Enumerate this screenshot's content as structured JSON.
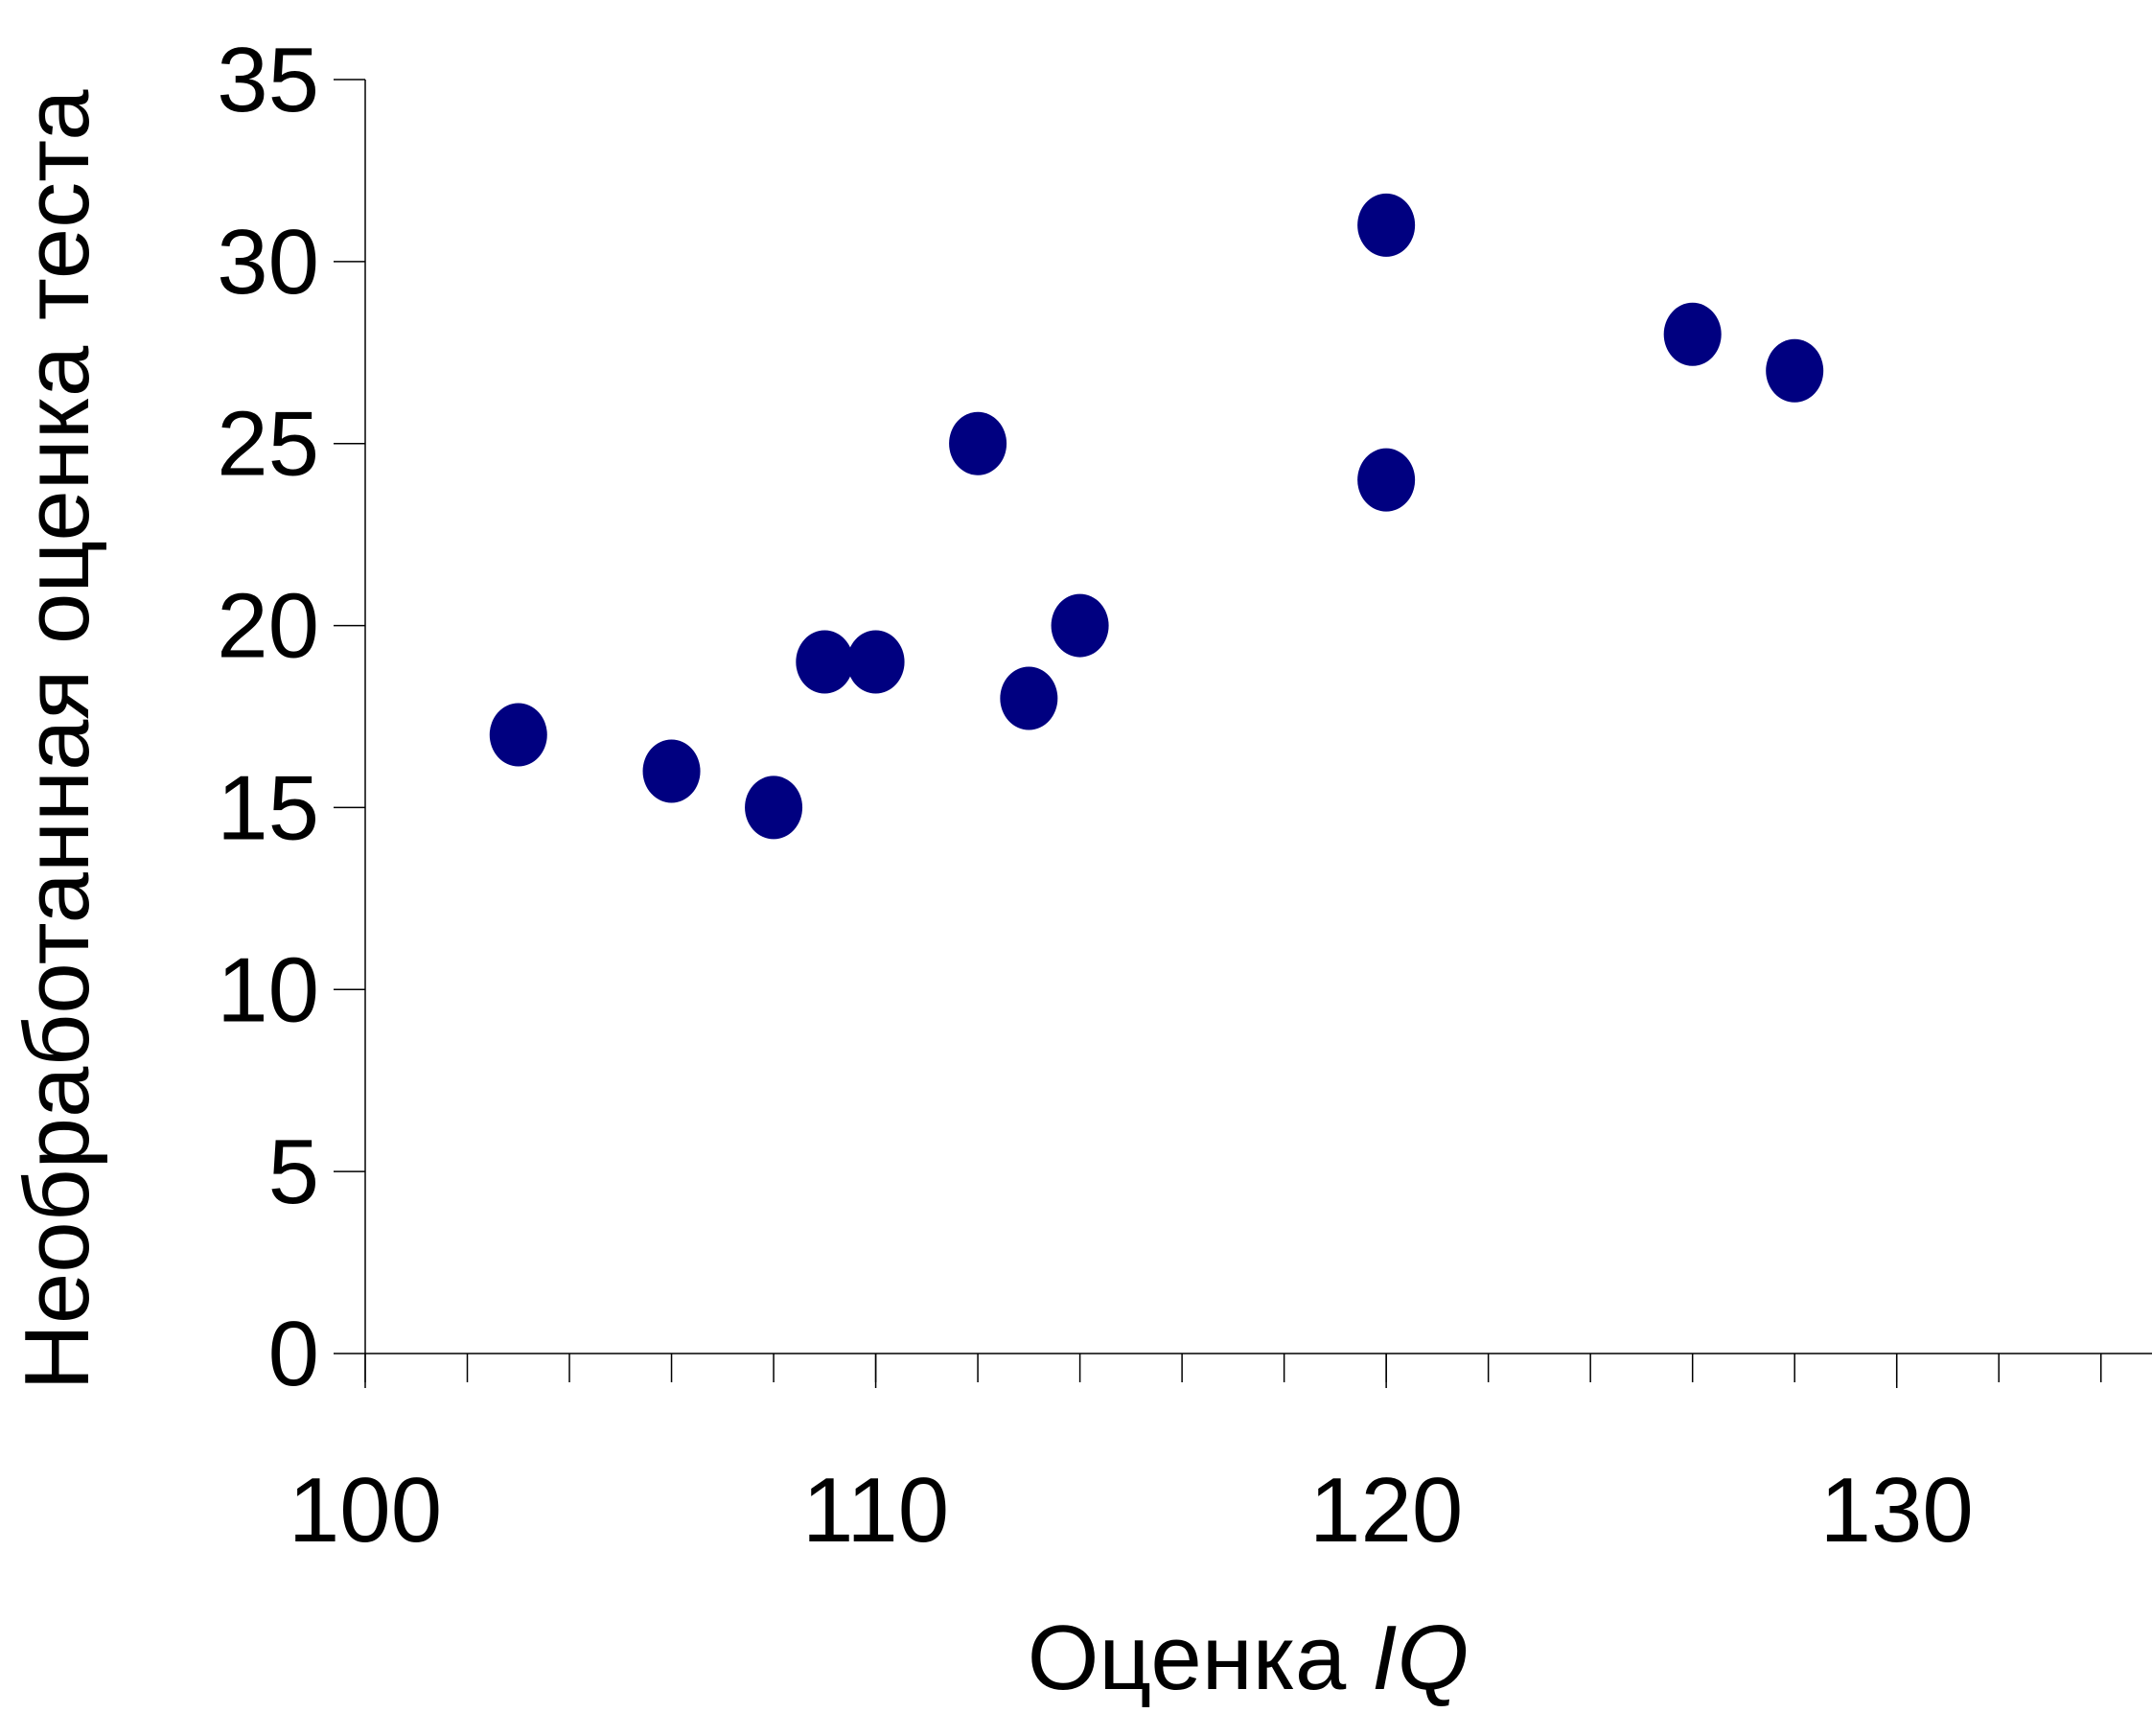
{
  "chart_data": {
    "type": "scatter",
    "title": "",
    "xlabel": "Оценка ",
    "xlabel_italic": "IQ",
    "ylabel": "Необработанная оценка теста",
    "xlim": [
      100,
      135
    ],
    "ylim": [
      0,
      35
    ],
    "x_ticks": [
      100,
      110,
      120,
      130
    ],
    "y_ticks": [
      0,
      5,
      10,
      15,
      20,
      25,
      30,
      35
    ],
    "grid": false,
    "legend": "none",
    "marker_color": "#000080",
    "series": [
      {
        "points": [
          {
            "x": 103,
            "y": 17
          },
          {
            "x": 106,
            "y": 16
          },
          {
            "x": 108,
            "y": 15
          },
          {
            "x": 109,
            "y": 19
          },
          {
            "x": 110,
            "y": 19
          },
          {
            "x": 112,
            "y": 25
          },
          {
            "x": 113,
            "y": 18
          },
          {
            "x": 114,
            "y": 20
          },
          {
            "x": 120,
            "y": 31
          },
          {
            "x": 120,
            "y": 24
          },
          {
            "x": 126,
            "y": 28
          },
          {
            "x": 128,
            "y": 27
          }
        ]
      }
    ]
  }
}
